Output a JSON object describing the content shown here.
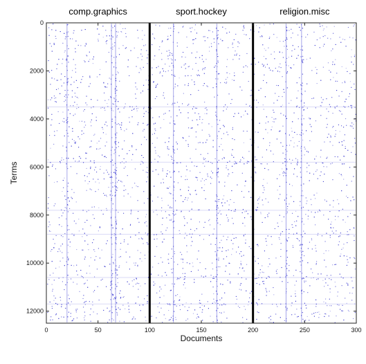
{
  "chart_data": {
    "type": "heatmap",
    "title": "",
    "xlabel": "Documents",
    "ylabel": "Terms",
    "xlim": [
      0,
      300
    ],
    "ylim": [
      0,
      12500
    ],
    "y_inverted": true,
    "x_ticks": [
      "0",
      "50",
      "100",
      "150",
      "200",
      "250",
      "300"
    ],
    "x_tick_values": [
      0,
      50,
      100,
      150,
      200,
      250,
      300
    ],
    "y_ticks": [
      "0",
      "2000",
      "4000",
      "6000",
      "8000",
      "10000",
      "12000"
    ],
    "y_tick_values": [
      0,
      2000,
      4000,
      6000,
      8000,
      10000,
      12000
    ],
    "dot_color": "#3a3ad0",
    "separator_color": "#000000",
    "group_separators": [
      100,
      200
    ],
    "groups": [
      {
        "label": "comp.graphics",
        "start": 0,
        "end": 100
      },
      {
        "label": "sport.hockey",
        "start": 100,
        "end": 200
      },
      {
        "label": "religion.misc",
        "start": 200,
        "end": 300
      }
    ],
    "dense_document_columns": [
      20,
      63,
      67,
      123,
      165,
      232,
      247
    ],
    "dense_term_rows": [
      3500,
      5800,
      7800,
      8800,
      10600,
      11700
    ],
    "grid": false
  }
}
